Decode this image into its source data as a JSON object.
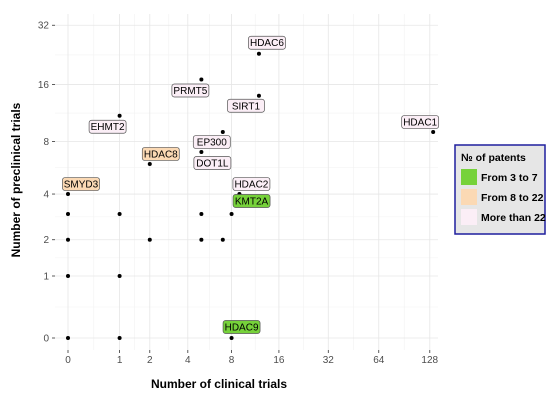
{
  "chart_data": {
    "type": "scatter",
    "xlabel": "Number of clinical trials",
    "ylabel": "Number of preclinical trials",
    "x_scale": "log2(x+1)",
    "y_scale": "log2(y+1)",
    "x_ticks": [
      0,
      1,
      2,
      4,
      8,
      16,
      32,
      64,
      128
    ],
    "y_ticks": [
      0,
      1,
      2,
      4,
      8,
      16,
      32
    ],
    "xlim": [
      0,
      128
    ],
    "ylim": [
      0,
      32
    ],
    "grid": true,
    "legend": {
      "title": "№ of patents",
      "position": "right",
      "entries": [
        {
          "label": "From 3 to 7",
          "color": "#76d23a"
        },
        {
          "label": "From 8 to 22",
          "color": "#fbd9b4"
        },
        {
          "label": "More than 22",
          "color": "#fbeef6"
        }
      ]
    },
    "points": [
      {
        "x": 0,
        "y": 0
      },
      {
        "x": 0,
        "y": 1
      },
      {
        "x": 0,
        "y": 2
      },
      {
        "x": 0,
        "y": 3
      },
      {
        "x": 0,
        "y": 4
      },
      {
        "x": 1,
        "y": 0
      },
      {
        "x": 1,
        "y": 1
      },
      {
        "x": 1,
        "y": 3
      },
      {
        "x": 1,
        "y": 11
      },
      {
        "x": 2,
        "y": 2
      },
      {
        "x": 2,
        "y": 6
      },
      {
        "x": 5,
        "y": 2
      },
      {
        "x": 5,
        "y": 3
      },
      {
        "x": 5,
        "y": 7
      },
      {
        "x": 5,
        "y": 17
      },
      {
        "x": 7,
        "y": 2
      },
      {
        "x": 7,
        "y": 9
      },
      {
        "x": 8,
        "y": 0
      },
      {
        "x": 8,
        "y": 3
      },
      {
        "x": 9,
        "y": 4
      },
      {
        "x": 12,
        "y": 14
      },
      {
        "x": 12,
        "y": 23
      },
      {
        "x": 134,
        "y": 9
      }
    ],
    "labels": [
      {
        "text": "HDAC6",
        "x": 12,
        "y": 23,
        "category": "More than 22",
        "dx": 8,
        "dy": -11
      },
      {
        "text": "PRMT5",
        "x": 5,
        "y": 17,
        "category": "More than 22",
        "dx": -11,
        "dy": 11
      },
      {
        "text": "SIRT1",
        "x": 12,
        "y": 14,
        "category": "More than 22",
        "dx": -13,
        "dy": 10
      },
      {
        "text": "HDAC1",
        "x": 134,
        "y": 9,
        "category": "More than 22",
        "dx": -13,
        "dy": -10
      },
      {
        "text": "EHMT2",
        "x": 1,
        "y": 11,
        "category": "More than 22",
        "dx": -12,
        "dy": 11
      },
      {
        "text": "EP300",
        "x": 7,
        "y": 9,
        "category": "More than 22",
        "dx": -11,
        "dy": 10
      },
      {
        "text": "DOT1L",
        "x": 5,
        "y": 7,
        "category": "More than 22",
        "dx": 11,
        "dy": 11
      },
      {
        "text": "HDAC8",
        "x": 2,
        "y": 6,
        "category": "From 8 to 22",
        "dx": 11,
        "dy": -10
      },
      {
        "text": "SMYD3",
        "x": 0,
        "y": 4,
        "category": "From 8 to 22",
        "dx": 13,
        "dy": -10
      },
      {
        "text": "HDAC2",
        "x": 9,
        "y": 4,
        "category": "More than 22",
        "dx": 12,
        "dy": -10
      },
      {
        "text": "KMT2A",
        "x": 8,
        "y": 3,
        "category": "From 3 to 7",
        "dx": 20,
        "dy": -13
      },
      {
        "text": "HDAC9",
        "x": 8,
        "y": 0,
        "category": "From 3 to 7",
        "dx": 10,
        "dy": -11
      }
    ]
  }
}
